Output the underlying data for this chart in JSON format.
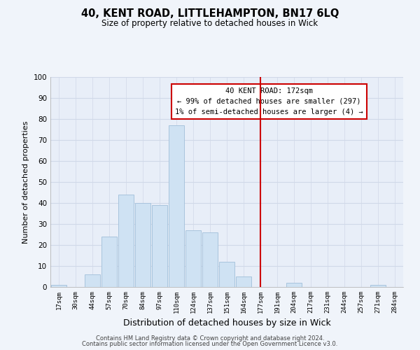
{
  "title": "40, KENT ROAD, LITTLEHAMPTON, BN17 6LQ",
  "subtitle": "Size of property relative to detached houses in Wick",
  "xlabel": "Distribution of detached houses by size in Wick",
  "ylabel": "Number of detached properties",
  "footer_lines": [
    "Contains HM Land Registry data © Crown copyright and database right 2024.",
    "Contains public sector information licensed under the Open Government Licence v3.0."
  ],
  "bin_labels": [
    "17sqm",
    "30sqm",
    "44sqm",
    "57sqm",
    "70sqm",
    "84sqm",
    "97sqm",
    "110sqm",
    "124sqm",
    "137sqm",
    "151sqm",
    "164sqm",
    "177sqm",
    "191sqm",
    "204sqm",
    "217sqm",
    "231sqm",
    "244sqm",
    "257sqm",
    "271sqm",
    "284sqm"
  ],
  "bar_values": [
    1,
    0,
    6,
    24,
    44,
    40,
    39,
    77,
    27,
    26,
    12,
    5,
    0,
    0,
    2,
    0,
    0,
    0,
    0,
    1,
    0
  ],
  "bar_color": "#cfe2f3",
  "bar_edge_color": "#a8c4dd",
  "vline_color": "#cc0000",
  "annotation_box_text": "40 KENT ROAD: 172sqm\n← 99% of detached houses are smaller (297)\n1% of semi-detached houses are larger (4) →",
  "ylim": [
    0,
    100
  ],
  "grid_color": "#d0d8e8",
  "background_color": "#f0f4fa",
  "plot_bg_color": "#e8eef8"
}
